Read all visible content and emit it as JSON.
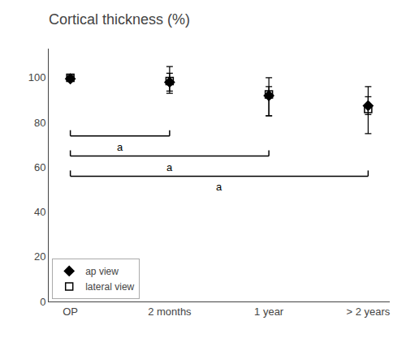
{
  "chart_data": {
    "type": "scatter",
    "title": "Cortical thickness (%)",
    "categories": [
      "OP",
      "2 months",
      "1 year",
      "> 2 years"
    ],
    "series": [
      {
        "name": "ap view",
        "color": "#000000",
        "marker": "diamond",
        "values": [
          99.5,
          98.0,
          92.0,
          87.5
        ],
        "error_low": [
          1.0,
          4.0,
          9.0,
          4.0
        ],
        "error_high": [
          1.0,
          4.0,
          4.0,
          4.0
        ]
      },
      {
        "name": "lateral view",
        "color": "#000000",
        "marker": "square-open",
        "values": [
          100.0,
          98.5,
          92.5,
          86.0
        ],
        "error_low": [
          1.0,
          5.5,
          9.5,
          11.0
        ],
        "error_high": [
          1.0,
          6.5,
          7.5,
          10.0
        ]
      }
    ],
    "ylim": [
      0,
      113
    ],
    "yticks": [
      0,
      20,
      40,
      60,
      80,
      100
    ],
    "grid": false,
    "legend": "lower left",
    "annotations": [
      {
        "from": "OP",
        "to": "2 months",
        "y": 74,
        "text": "a"
      },
      {
        "from": "OP",
        "to": "1 year",
        "y": 65,
        "text": "a"
      },
      {
        "from": "OP",
        "to": "> 2 years",
        "y": 56,
        "text": "a"
      }
    ]
  }
}
